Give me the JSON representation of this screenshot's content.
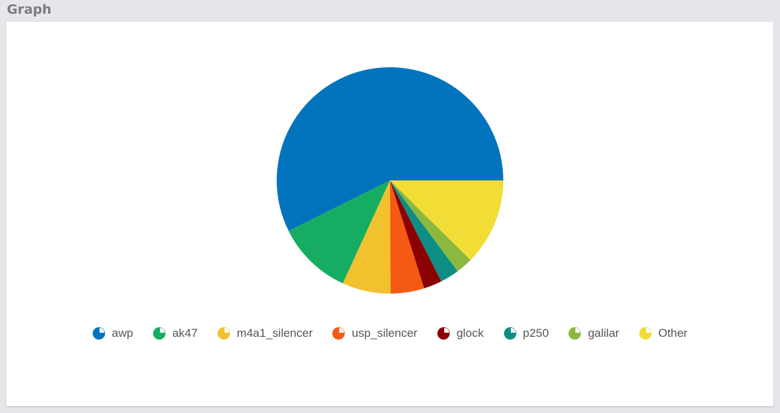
{
  "header": {
    "title": "Graph"
  },
  "chart_data": {
    "type": "pie",
    "categories": [
      "awp",
      "ak47",
      "m4a1_silencer",
      "usp_silencer",
      "glock",
      "p250",
      "galilar",
      "Other"
    ],
    "values": [
      57.3,
      10.8,
      6.9,
      4.8,
      2.6,
      2.7,
      2.4,
      12.4
    ],
    "colors": [
      "#0274be",
      "#16ad62",
      "#f2c12e",
      "#f45a13",
      "#8b0000",
      "#0d8e84",
      "#8bb83f",
      "#f2dd37"
    ]
  }
}
